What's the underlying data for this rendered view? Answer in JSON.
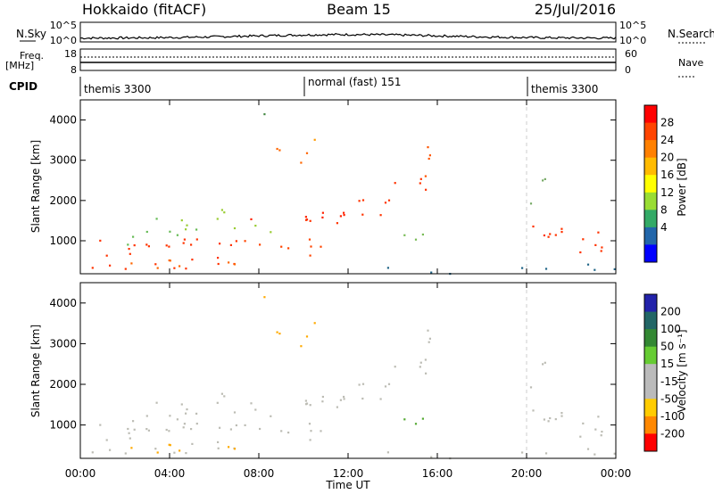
{
  "header": {
    "station": "Hokkaido (fitACF)",
    "beam": "Beam 15",
    "date": "25/Jul/2016"
  },
  "top_panels": {
    "nsky_label": "N.Sky",
    "nsearch_label": "N.Search",
    "nsky_ticks": [
      "10^5",
      "10^0"
    ],
    "nsky_right_ticks": [
      "10^5",
      "10^0"
    ],
    "freq_label_1": "Freq.",
    "freq_label_2": "[MHz]",
    "freq_ticks": [
      "18",
      "8"
    ],
    "nave_label": "Nave",
    "nave_ticks": [
      "60",
      "0"
    ],
    "cpid_label": "CPID",
    "cpid_segments": [
      {
        "label": "themis 3300",
        "start": 0,
        "end": 10
      },
      {
        "label": "normal (fast) 151",
        "start": 10,
        "end": 20
      },
      {
        "label": "themis 3300",
        "start": 20,
        "end": 24
      }
    ]
  },
  "chart_data": [
    {
      "type": "heatmap",
      "name": "power",
      "ylabel": "Slant Range [km]",
      "colorbar_label": "Power [dB]",
      "colorbar_ticks": [
        "28",
        "24",
        "20",
        "16",
        "12",
        "8",
        "4"
      ],
      "colorbar_colors": [
        "#ff0000",
        "#ff4400",
        "#ff8000",
        "#ffbb00",
        "#ffff00",
        "#99dd33",
        "#33aa66",
        "#2266aa",
        "#0000ff"
      ],
      "x_range_hours": [
        0,
        24
      ],
      "ylim": [
        180,
        4500
      ],
      "yticks": [
        1000,
        2000,
        3000,
        4000
      ]
    },
    {
      "type": "heatmap",
      "name": "velocity",
      "ylabel": "Slant Range [km]",
      "colorbar_label": "Velocity [m s⁻¹]",
      "colorbar_ticks": [
        "200",
        "100",
        "50",
        "15",
        "-15",
        "-50",
        "-100",
        "-200"
      ],
      "colorbar_colors": [
        "#2222aa",
        "#226666",
        "#338833",
        "#66cc33",
        "#bbbbbb",
        "#bbbbbb",
        "#ffcc00",
        "#ff8800",
        "#ff0000"
      ],
      "x_range_hours": [
        0,
        24
      ],
      "ylim": [
        180,
        4500
      ],
      "yticks": [
        1000,
        2000,
        3000,
        4000
      ]
    }
  ],
  "time_axis": {
    "xlabel": "Time UT",
    "ticks": [
      "00:00",
      "04:00",
      "08:00",
      "12:00",
      "16:00",
      "20:00",
      "00:00"
    ]
  },
  "colors": {
    "gray_scatter": "#bcbcb4",
    "power_strong": "#ff2a00",
    "power_mid": "#ff9900",
    "velocity_neg": "#ffaa00"
  }
}
